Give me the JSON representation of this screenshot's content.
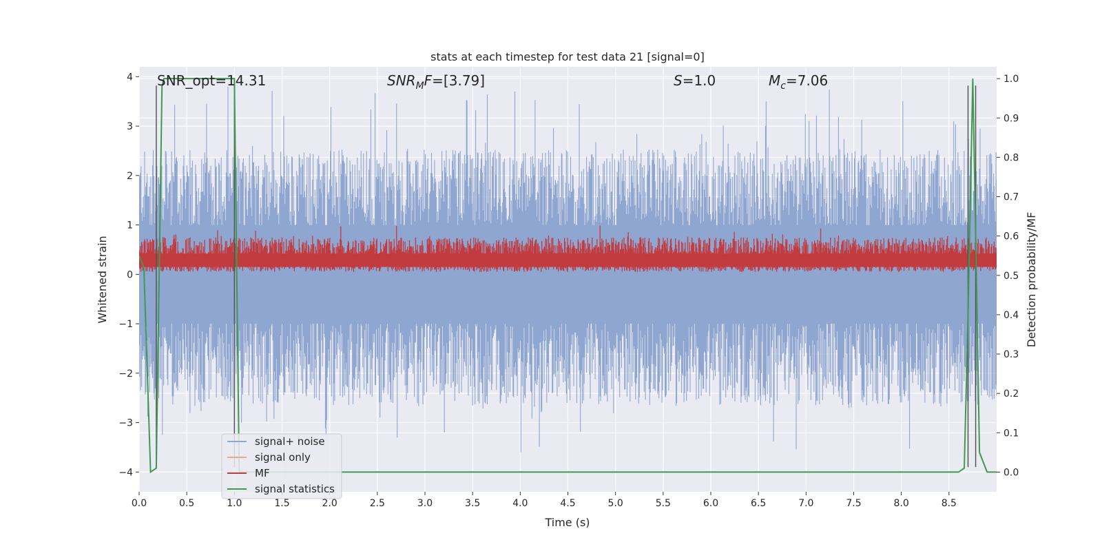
{
  "chart_data": {
    "type": "line",
    "title": "stats at each timestep for test data 21 [signal=0]",
    "xlabel": "Time (s)",
    "ylabel_left": "Whitened strain",
    "ylabel_right": "Detection probability/MF",
    "xlim": [
      0.0,
      9.0
    ],
    "ylim_left": [
      -4.4,
      4.2
    ],
    "ylim_right": [
      -0.05,
      1.03
    ],
    "grid": true,
    "xticks": [
      "0.0",
      "0.5",
      "1.0",
      "1.5",
      "2.0",
      "2.5",
      "3.0",
      "3.5",
      "4.0",
      "4.5",
      "5.0",
      "5.5",
      "6.0",
      "6.5",
      "7.0",
      "7.5",
      "8.0",
      "8.5"
    ],
    "yticks_left": [
      "4",
      "3",
      "2",
      "1",
      "0",
      "−1",
      "−2",
      "−3",
      "−4"
    ],
    "yticks_right": [
      "1.0",
      "0.9",
      "0.8",
      "0.7",
      "0.6",
      "0.5",
      "0.4",
      "0.3",
      "0.2",
      "0.1",
      "0.0"
    ],
    "annotations": {
      "snr_opt": "SNR_opt=14.31",
      "snr_mf_var": "SNR",
      "snr_mf_sub": "M",
      "snr_mf_var2": "F",
      "snr_mf_val": "=[3.79]",
      "s_var": "S",
      "s_val": "=1.0",
      "mc_var": "M",
      "mc_sub": "c",
      "mc_val": "=7.06"
    },
    "legend": {
      "placement": "lower-left",
      "entries": [
        {
          "label": "signal+ noise",
          "color": "#8fa6d0"
        },
        {
          "label": "signal only",
          "color": "#e8a888"
        },
        {
          "label": "MF",
          "color": "#c23b3f"
        },
        {
          "label": "signal statistics",
          "color": "#3f9a4f"
        }
      ]
    },
    "series": [
      {
        "name": "signal+ noise",
        "axis": "left",
        "color": "#8fa6d0",
        "description_range": [
          -3.6,
          3.8
        ],
        "band_envelope": {
          "x": [
            0.0,
            9.0
          ],
          "upper_typical": 2.2,
          "lower_typical": -2.3,
          "upper_peak": 3.8,
          "lower_peak": -3.6
        }
      },
      {
        "name": "MF",
        "axis": "left",
        "color": "#c23b3f",
        "band_envelope": {
          "x": [
            0.0,
            9.0
          ],
          "upper_typical": 0.75,
          "lower_typical": 0.05,
          "upper_peak": 1.0,
          "lower_peak": 0.0
        }
      },
      {
        "name": "signal statistics",
        "axis": "right",
        "color": "#3f9a4f",
        "x": [
          0.0,
          0.05,
          0.12,
          0.18,
          0.24,
          0.26,
          0.3,
          0.5,
          0.75,
          0.98,
          1.0,
          1.02,
          1.05,
          1.2,
          2.0,
          3.0,
          4.0,
          5.0,
          6.0,
          7.0,
          8.0,
          8.6,
          8.66,
          8.7,
          8.75,
          8.78,
          8.82,
          8.9,
          8.95,
          9.0
        ],
        "y": [
          0.55,
          0.52,
          0.0,
          0.01,
          0.98,
          1.0,
          1.0,
          1.0,
          1.0,
          1.0,
          1.0,
          0.6,
          0.0,
          0.0,
          0.0,
          0.0,
          0.0,
          0.0,
          0.0,
          0.0,
          0.0,
          0.0,
          0.01,
          0.4,
          1.0,
          0.6,
          0.05,
          0.0,
          0.0,
          0.0
        ]
      }
    ],
    "vertical_markers": {
      "color": "#555555",
      "x": [
        0.18,
        1.0,
        8.7,
        8.78
      ]
    }
  }
}
